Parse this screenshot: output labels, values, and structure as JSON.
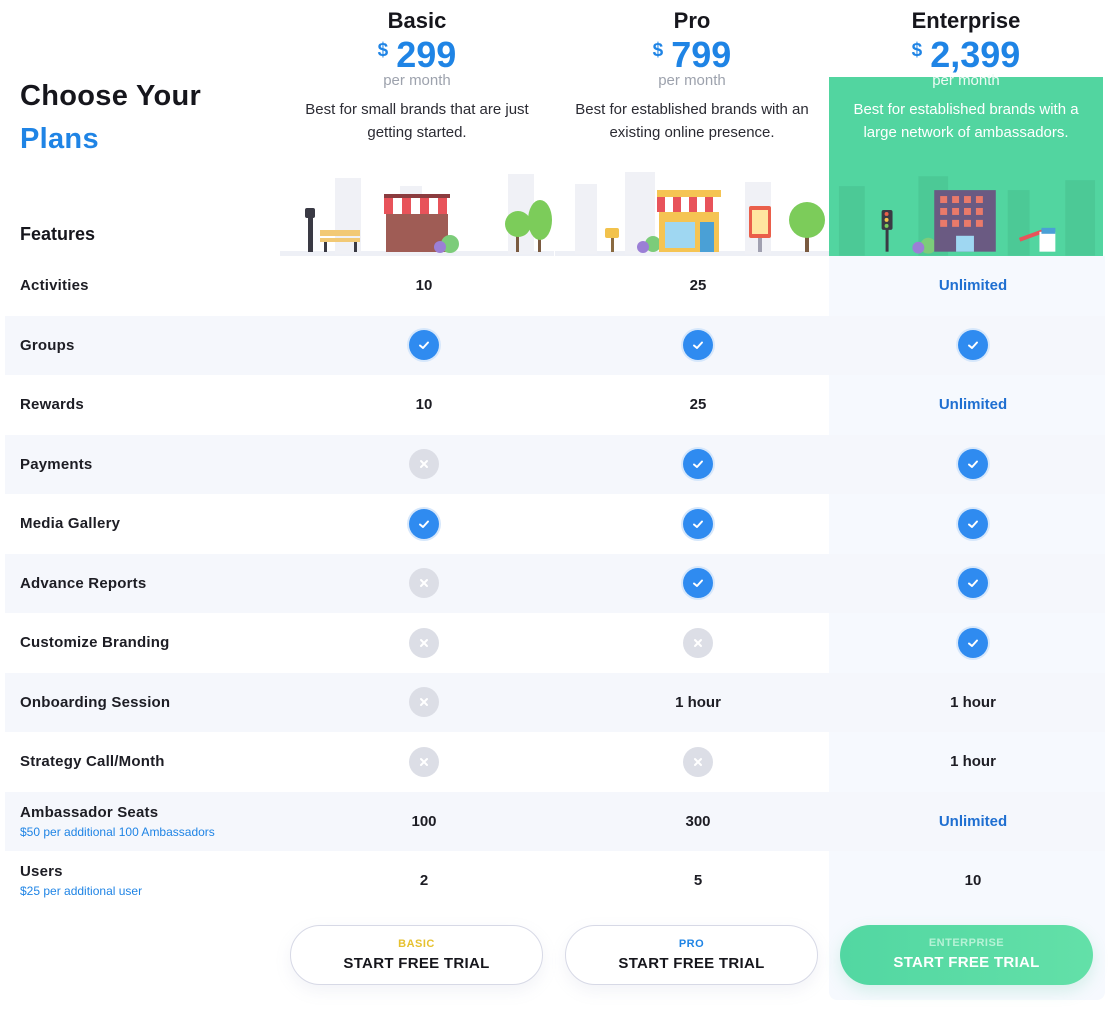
{
  "header": {
    "title_line1": "Choose Your",
    "title_line2": "Plans",
    "features_label": "Features"
  },
  "plans": [
    {
      "name": "Basic",
      "currency": "$",
      "price": "299",
      "period": "per month",
      "description": "Best for small brands that are just getting started."
    },
    {
      "name": "Pro",
      "currency": "$",
      "price": "799",
      "period": "per month",
      "description": "Best for established brands with an existing online presence."
    },
    {
      "name": "Enterprise",
      "currency": "$",
      "price": "2,399",
      "period": "per month",
      "description": "Best for established brands with a large network of ambassadors."
    }
  ],
  "features": [
    {
      "label": "Activities",
      "sub": "",
      "values": [
        "10",
        "25",
        "Unlimited"
      ]
    },
    {
      "label": "Groups",
      "sub": "",
      "values": [
        "check",
        "check",
        "check"
      ]
    },
    {
      "label": "Rewards",
      "sub": "",
      "values": [
        "10",
        "25",
        "Unlimited"
      ]
    },
    {
      "label": "Payments",
      "sub": "",
      "values": [
        "cross",
        "check",
        "check"
      ]
    },
    {
      "label": "Media Gallery",
      "sub": "",
      "values": [
        "check",
        "check",
        "check"
      ]
    },
    {
      "label": "Advance Reports",
      "sub": "",
      "values": [
        "cross",
        "check",
        "check"
      ]
    },
    {
      "label": "Customize Branding",
      "sub": "",
      "values": [
        "cross",
        "cross",
        "check"
      ]
    },
    {
      "label": "Onboarding Session",
      "sub": "",
      "values": [
        "cross",
        "1 hour",
        "1 hour"
      ]
    },
    {
      "label": "Strategy Call/Month",
      "sub": "",
      "values": [
        "cross",
        "cross",
        "1 hour"
      ]
    },
    {
      "label": "Ambassador Seats",
      "sub": "$50 per additional 100 Ambassadors",
      "values": [
        "100",
        "300",
        "Unlimited"
      ]
    },
    {
      "label": "Users",
      "sub": "$25 per additional user",
      "values": [
        "2",
        "5",
        "10"
      ]
    }
  ],
  "buttons": [
    {
      "plan": "BASIC",
      "cta": "START FREE TRIAL",
      "plan_color": "#e6c12f"
    },
    {
      "plan": "PRO",
      "cta": "START FREE TRIAL",
      "plan_color": "#1f84e5"
    },
    {
      "plan": "ENTERPRISE",
      "cta": "START FREE TRIAL",
      "plan_color": "#b6f2d6"
    }
  ],
  "colors": {
    "accent_blue": "#1f84e5",
    "check_blue": "#2f8bf0",
    "enterprise_green": "#52d5a0",
    "cross_gray": "#dcdee6"
  },
  "icons": {
    "check": "check-circle-icon",
    "cross": "cross-circle-icon"
  }
}
